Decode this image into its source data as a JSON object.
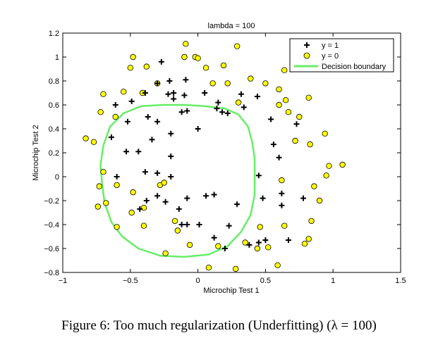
{
  "chart_data": {
    "type": "scatter",
    "title": "lambda = 100",
    "xlabel": "Microchip Test 1",
    "ylabel": "Microchip Test 2",
    "xlim": [
      -1,
      1.5
    ],
    "ylim": [
      -0.8,
      1.2
    ],
    "xticks": [
      -1,
      -0.5,
      0,
      0.5,
      1,
      1.5
    ],
    "xtick_labels": [
      "−1",
      "−0.5",
      "0",
      "0.5",
      "1",
      "1.5"
    ],
    "yticks": [
      -0.8,
      -0.6,
      -0.4,
      -0.2,
      0,
      0.2,
      0.4,
      0.6,
      0.8,
      1,
      1.2
    ],
    "ytick_labels": [
      "−0.8",
      "−0.6",
      "−0.4",
      "−0.2",
      "0",
      "0.2",
      "0.4",
      "0.6",
      "0.8",
      "1",
      "1.2"
    ],
    "legend_position": "top-right",
    "legend": [
      "y = 1",
      "y = 0",
      "Decision boundary"
    ],
    "colors": {
      "positive": "#000000",
      "negative_fill": "#ffff00",
      "negative_edge": "#000000",
      "boundary": "#66ee66"
    },
    "series": [
      {
        "name": "y = 1",
        "marker": "plus",
        "points": [
          [
            -0.27,
            0.96
          ],
          [
            -0.09,
            0.81
          ],
          [
            -0.21,
            0.8
          ],
          [
            -0.3,
            0.78
          ],
          [
            -0.39,
            0.7
          ],
          [
            -0.22,
            0.69
          ],
          [
            -0.18,
            0.7
          ],
          [
            -0.1,
            0.68
          ],
          [
            -0.18,
            0.65
          ],
          [
            0.05,
            0.7
          ],
          [
            -0.49,
            0.63
          ],
          [
            -0.61,
            0.6
          ],
          [
            0.32,
            0.69
          ],
          [
            0.44,
            0.67
          ],
          [
            0.15,
            0.62
          ],
          [
            0.34,
            0.58
          ],
          [
            0.14,
            0.57
          ],
          [
            0.18,
            0.54
          ],
          [
            0.22,
            0.53
          ],
          [
            -0.08,
            0.55
          ],
          [
            -0.12,
            0.54
          ],
          [
            -0.37,
            0.5
          ],
          [
            -0.52,
            0.46
          ],
          [
            -0.3,
            0.46
          ],
          [
            0.54,
            0.48
          ],
          [
            0.73,
            0.44
          ],
          [
            -0.2,
            0.36
          ],
          [
            0.0,
            0.4
          ],
          [
            -0.64,
            0.33
          ],
          [
            -0.34,
            0.31
          ],
          [
            0.56,
            0.27
          ],
          [
            -0.53,
            0.21
          ],
          [
            -0.44,
            0.21
          ],
          [
            0.6,
            0.16
          ],
          [
            -0.2,
            0.17
          ],
          [
            -0.39,
            0.04
          ],
          [
            -0.3,
            0.03
          ],
          [
            -0.6,
            0.0
          ],
          [
            -0.2,
            0.0
          ],
          [
            0.45,
            0.01
          ],
          [
            -0.3,
            -0.16
          ],
          [
            0.62,
            -0.14
          ],
          [
            0.12,
            -0.15
          ],
          [
            -0.38,
            -0.2
          ],
          [
            0.06,
            -0.16
          ],
          [
            0.48,
            -0.18
          ],
          [
            -0.24,
            -0.21
          ],
          [
            -0.08,
            -0.18
          ],
          [
            0.29,
            -0.23
          ],
          [
            -0.43,
            -0.27
          ],
          [
            -0.14,
            -0.27
          ],
          [
            0.62,
            -0.24
          ],
          [
            0.78,
            -0.18
          ],
          [
            -0.12,
            -0.4
          ],
          [
            0.01,
            -0.4
          ],
          [
            0.23,
            -0.41
          ],
          [
            0.12,
            -0.51
          ],
          [
            0.38,
            -0.57
          ],
          [
            0.5,
            -0.53
          ],
          [
            0.45,
            -0.55
          ],
          [
            0.67,
            -0.53
          ],
          [
            0.2,
            -0.6
          ],
          [
            -0.08,
            -0.4
          ]
        ]
      },
      {
        "name": "y = 0",
        "marker": "circle",
        "points": [
          [
            -0.09,
            1.11
          ],
          [
            0.29,
            1.09
          ],
          [
            -0.48,
            1.0
          ],
          [
            -0.1,
            1.0
          ],
          [
            -0.02,
            1.0
          ],
          [
            0.0,
            0.99
          ],
          [
            -0.5,
            0.91
          ],
          [
            -0.38,
            0.92
          ],
          [
            0.06,
            0.91
          ],
          [
            0.19,
            0.93
          ],
          [
            0.64,
            0.89
          ],
          [
            0.39,
            0.82
          ],
          [
            0.5,
            0.78
          ],
          [
            -0.3,
            0.78
          ],
          [
            0.11,
            0.78
          ],
          [
            0.22,
            0.78
          ],
          [
            0.6,
            0.73
          ],
          [
            -0.55,
            0.71
          ],
          [
            -0.41,
            0.7
          ],
          [
            -0.7,
            0.69
          ],
          [
            0.65,
            0.64
          ],
          [
            0.82,
            0.66
          ],
          [
            0.6,
            0.6
          ],
          [
            0.3,
            0.62
          ],
          [
            -0.72,
            0.54
          ],
          [
            0.75,
            0.5
          ],
          [
            -0.61,
            0.5
          ],
          [
            0.67,
            0.54
          ],
          [
            0.94,
            0.36
          ],
          [
            0.72,
            0.3
          ],
          [
            -0.83,
            0.32
          ],
          [
            -0.77,
            0.29
          ],
          [
            0.83,
            0.27
          ],
          [
            0.97,
            0.09
          ],
          [
            1.07,
            0.1
          ],
          [
            0.95,
            0.01
          ],
          [
            -0.7,
            0.04
          ],
          [
            -0.6,
            -0.07
          ],
          [
            0.62,
            -0.03
          ],
          [
            -0.73,
            -0.08
          ],
          [
            0.86,
            -0.08
          ],
          [
            -0.48,
            -0.13
          ],
          [
            -0.28,
            -0.07
          ],
          [
            -0.25,
            -0.05
          ],
          [
            -0.68,
            -0.22
          ],
          [
            0.9,
            -0.2
          ],
          [
            -0.74,
            -0.25
          ],
          [
            -0.4,
            -0.26
          ],
          [
            -0.49,
            -0.3
          ],
          [
            -0.6,
            -0.42
          ],
          [
            0.84,
            -0.37
          ],
          [
            -0.4,
            -0.41
          ],
          [
            -0.17,
            -0.37
          ],
          [
            -0.15,
            -0.45
          ],
          [
            0.64,
            -0.41
          ],
          [
            0.46,
            -0.42
          ],
          [
            0.82,
            -0.52
          ],
          [
            0.35,
            -0.55
          ],
          [
            0.44,
            -0.6
          ],
          [
            0.52,
            -0.59
          ],
          [
            0.79,
            -0.56
          ],
          [
            -0.06,
            -0.57
          ],
          [
            0.15,
            -0.58
          ],
          [
            -0.24,
            -0.64
          ],
          [
            0.59,
            -0.74
          ],
          [
            0.08,
            -0.76
          ],
          [
            0.28,
            -0.77
          ]
        ]
      },
      {
        "name": "Decision boundary",
        "marker": "line",
        "points": [
          [
            -0.25,
            0.6
          ],
          [
            -0.1,
            0.6
          ],
          [
            0.05,
            0.59
          ],
          [
            0.2,
            0.57
          ],
          [
            0.3,
            0.52
          ],
          [
            0.37,
            0.42
          ],
          [
            0.4,
            0.3
          ],
          [
            0.42,
            0.15
          ],
          [
            0.42,
            0.0
          ],
          [
            0.42,
            -0.15
          ],
          [
            0.39,
            -0.32
          ],
          [
            0.32,
            -0.46
          ],
          [
            0.22,
            -0.58
          ],
          [
            0.08,
            -0.65
          ],
          [
            -0.1,
            -0.67
          ],
          [
            -0.28,
            -0.66
          ],
          [
            -0.44,
            -0.6
          ],
          [
            -0.56,
            -0.5
          ],
          [
            -0.64,
            -0.38
          ],
          [
            -0.69,
            -0.22
          ],
          [
            -0.71,
            -0.05
          ],
          [
            -0.72,
            0.1
          ],
          [
            -0.7,
            0.26
          ],
          [
            -0.65,
            0.42
          ],
          [
            -0.55,
            0.53
          ],
          [
            -0.42,
            0.59
          ],
          [
            -0.25,
            0.6
          ]
        ]
      }
    ]
  },
  "caption": "Figure 6:  Too much regularization (Underfitting) (λ = 100)"
}
